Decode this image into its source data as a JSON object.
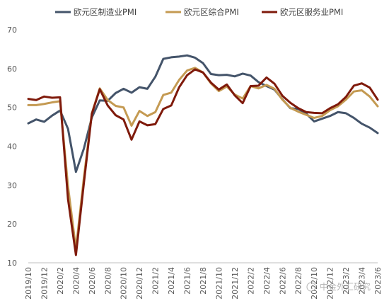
{
  "chart_data": {
    "type": "line",
    "x": [
      "2019/10",
      "2019/11",
      "2019/12",
      "2020/1",
      "2020/2",
      "2020/3",
      "2020/4",
      "2020/5",
      "2020/6",
      "2020/7",
      "2020/8",
      "2020/9",
      "2020/10",
      "2020/11",
      "2020/12",
      "2021/1",
      "2021/2",
      "2021/3",
      "2021/4",
      "2021/5",
      "2021/6",
      "2021/7",
      "2021/8",
      "2021/9",
      "2021/10",
      "2021/11",
      "2021/12",
      "2022/1",
      "2022/2",
      "2022/3",
      "2022/4",
      "2022/5",
      "2022/6",
      "2022/7",
      "2022/8",
      "2022/9",
      "2022/10",
      "2022/11",
      "2022/12",
      "2023/1",
      "2023/2",
      "2023/3",
      "2023/4",
      "2023/5",
      "2023/6"
    ],
    "x_tick_labels": [
      "2019/10",
      "2019/12",
      "2020/2",
      "2020/4",
      "2020/6",
      "2020/8",
      "2020/10",
      "2020/12",
      "2021/2",
      "2021/4",
      "2021/6",
      "2021/8",
      "2021/10",
      "2021/12",
      "2022/2",
      "2022/4",
      "2022/6",
      "2022/8",
      "2022/10",
      "2022/12",
      "2023/2",
      "2023/4",
      "2023/6"
    ],
    "ylim": [
      10,
      70
    ],
    "yticks": [
      10,
      20,
      30,
      40,
      50,
      60,
      70
    ],
    "grid": false,
    "legend_position": "top",
    "series": [
      {
        "name": "欧元区制造业PMI",
        "color": "#44546a",
        "values": [
          45.9,
          46.9,
          46.3,
          47.9,
          49.2,
          44.5,
          33.4,
          39.4,
          47.4,
          51.8,
          51.7,
          53.7,
          54.8,
          53.8,
          55.2,
          54.8,
          57.9,
          62.5,
          62.9,
          63.1,
          63.4,
          62.8,
          61.4,
          58.6,
          58.3,
          58.4,
          58.0,
          58.7,
          58.2,
          56.5,
          55.5,
          54.6,
          52.1,
          49.8,
          49.6,
          48.4,
          46.4,
          47.1,
          47.8,
          48.8,
          48.5,
          47.3,
          45.8,
          44.8,
          43.4
        ]
      },
      {
        "name": "欧元区综合PMI",
        "color": "#c49a52",
        "values": [
          50.6,
          50.6,
          50.9,
          51.3,
          51.6,
          29.7,
          13.6,
          31.9,
          48.5,
          54.9,
          51.9,
          50.4,
          50.0,
          45.3,
          49.1,
          47.8,
          48.8,
          53.2,
          53.8,
          57.1,
          59.5,
          60.2,
          59.0,
          56.2,
          54.2,
          55.4,
          53.3,
          52.3,
          55.5,
          54.9,
          55.8,
          54.8,
          52.0,
          49.9,
          48.9,
          48.1,
          47.3,
          47.8,
          49.3,
          50.3,
          52.0,
          54.1,
          54.4,
          52.8,
          50.3
        ]
      },
      {
        "name": "欧元区服务业PMI",
        "color": "#7f1a0b",
        "values": [
          52.2,
          51.9,
          52.8,
          52.5,
          52.6,
          26.4,
          12.0,
          30.5,
          48.3,
          54.7,
          50.5,
          48.0,
          46.9,
          41.7,
          46.4,
          45.4,
          45.7,
          49.6,
          50.5,
          55.2,
          58.3,
          59.8,
          59.0,
          56.4,
          54.6,
          55.9,
          53.1,
          51.1,
          55.5,
          55.6,
          57.7,
          56.1,
          53.0,
          51.2,
          49.8,
          48.8,
          48.6,
          48.5,
          49.8,
          50.8,
          52.7,
          55.6,
          56.2,
          55.1,
          52.0
        ]
      }
    ]
  },
  "watermark_text": "中金外汇研究"
}
